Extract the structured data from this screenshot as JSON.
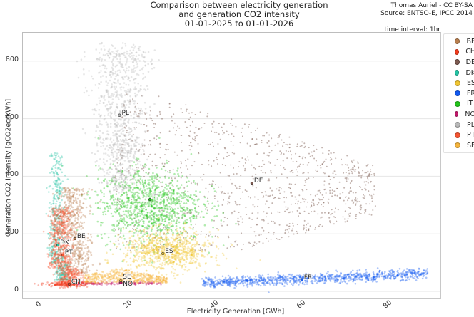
{
  "header": {
    "title_lines": [
      "Comparison between electricity generation",
      "and generation CO2 intensity",
      "01-01-2025 to 01-01-2026"
    ],
    "credit_lines": [
      "Thomas Auriel - CC BY-SA",
      "Source: ENTSO-E, IPCC 2014"
    ],
    "interval": "time interval: 1hr"
  },
  "chart_data": {
    "type": "scatter",
    "title": "Comparison between electricity generation and generation CO2 intensity 01-01-2025 to 01-01-2026",
    "subtitle": "time interval: 1hr",
    "xlabel": "Electricity Generation [GWh]",
    "ylabel": "Generation CO2 Intensity [gCO2eq/kWh]",
    "xlim": [
      -4,
      92
    ],
    "ylim": [
      -30,
      890
    ],
    "xticks": [
      0,
      20,
      40,
      60,
      80
    ],
    "yticks": [
      0,
      200,
      400,
      600,
      800
    ],
    "grid": "horizontal",
    "legend_position": "right, outside",
    "series": [
      {
        "name": "BE",
        "color": "#b97f4f",
        "centroid": [
          7.7,
          183
        ],
        "x_range": [
          4,
          14
        ],
        "y_range": [
          60,
          370
        ]
      },
      {
        "name": "CH",
        "color": "#f23a1c",
        "centroid": [
          6.4,
          25
        ],
        "x_range": [
          1,
          13
        ],
        "y_range": [
          15,
          45
        ]
      },
      {
        "name": "DE",
        "color": "#7d5a50",
        "centroid": [
          48.5,
          376
        ],
        "x_range": [
          16,
          78
        ],
        "y_range": [
          130,
          690
        ]
      },
      {
        "name": "DK",
        "color": "#22c4a4",
        "centroid": [
          3.8,
          161
        ],
        "x_range": [
          0.5,
          7
        ],
        "y_range": [
          40,
          480
        ]
      },
      {
        "name": "ES",
        "color": "#f0c531",
        "centroid": [
          28,
          131
        ],
        "x_range": [
          13,
          42
        ],
        "y_range": [
          60,
          270
        ]
      },
      {
        "name": "FR",
        "color": "#1159f0",
        "centroid": [
          60,
          40
        ],
        "x_range": [
          36,
          89
        ],
        "y_range": [
          20,
          80
        ]
      },
      {
        "name": "IT",
        "color": "#22c51a",
        "centroid": [
          25,
          319
        ],
        "x_range": [
          11,
          40
        ],
        "y_range": [
          140,
          450
        ]
      },
      {
        "name": "NO",
        "color": "#c2186a",
        "centroid": [
          18.3,
          30
        ],
        "x_range": [
          8,
          28
        ],
        "y_range": [
          22,
          40
        ]
      },
      {
        "name": "PL",
        "color": "#b8b8b8",
        "centroid": [
          18,
          612
        ],
        "x_range": [
          10,
          27
        ],
        "y_range": [
          350,
          850
        ]
      },
      {
        "name": "PT",
        "color": "#f55431",
        "centroid": [
          4.9,
          126
        ],
        "x_range": [
          1.5,
          9
        ],
        "y_range": [
          25,
          340
        ]
      },
      {
        "name": "SE",
        "color": "#f5b43c",
        "centroid": [
          18.3,
          37
        ],
        "x_range": [
          9,
          29
        ],
        "y_range": [
          20,
          80
        ]
      }
    ]
  },
  "legend": {
    "items": [
      {
        "label": "BE",
        "color": "#b97f4f"
      },
      {
        "label": "CH",
        "color": "#f23a1c"
      },
      {
        "label": "DE",
        "color": "#7d5a50"
      },
      {
        "label": "DK",
        "color": "#22c4a4"
      },
      {
        "label": "ES",
        "color": "#f0c531"
      },
      {
        "label": "FR",
        "color": "#1159f0"
      },
      {
        "label": "IT",
        "color": "#22c51a"
      },
      {
        "label": "NO",
        "color": "#c2186a"
      },
      {
        "label": "PL",
        "color": "#b8b8b8"
      },
      {
        "label": "PT",
        "color": "#f55431"
      },
      {
        "label": "SE",
        "color": "#f5b43c"
      }
    ]
  }
}
